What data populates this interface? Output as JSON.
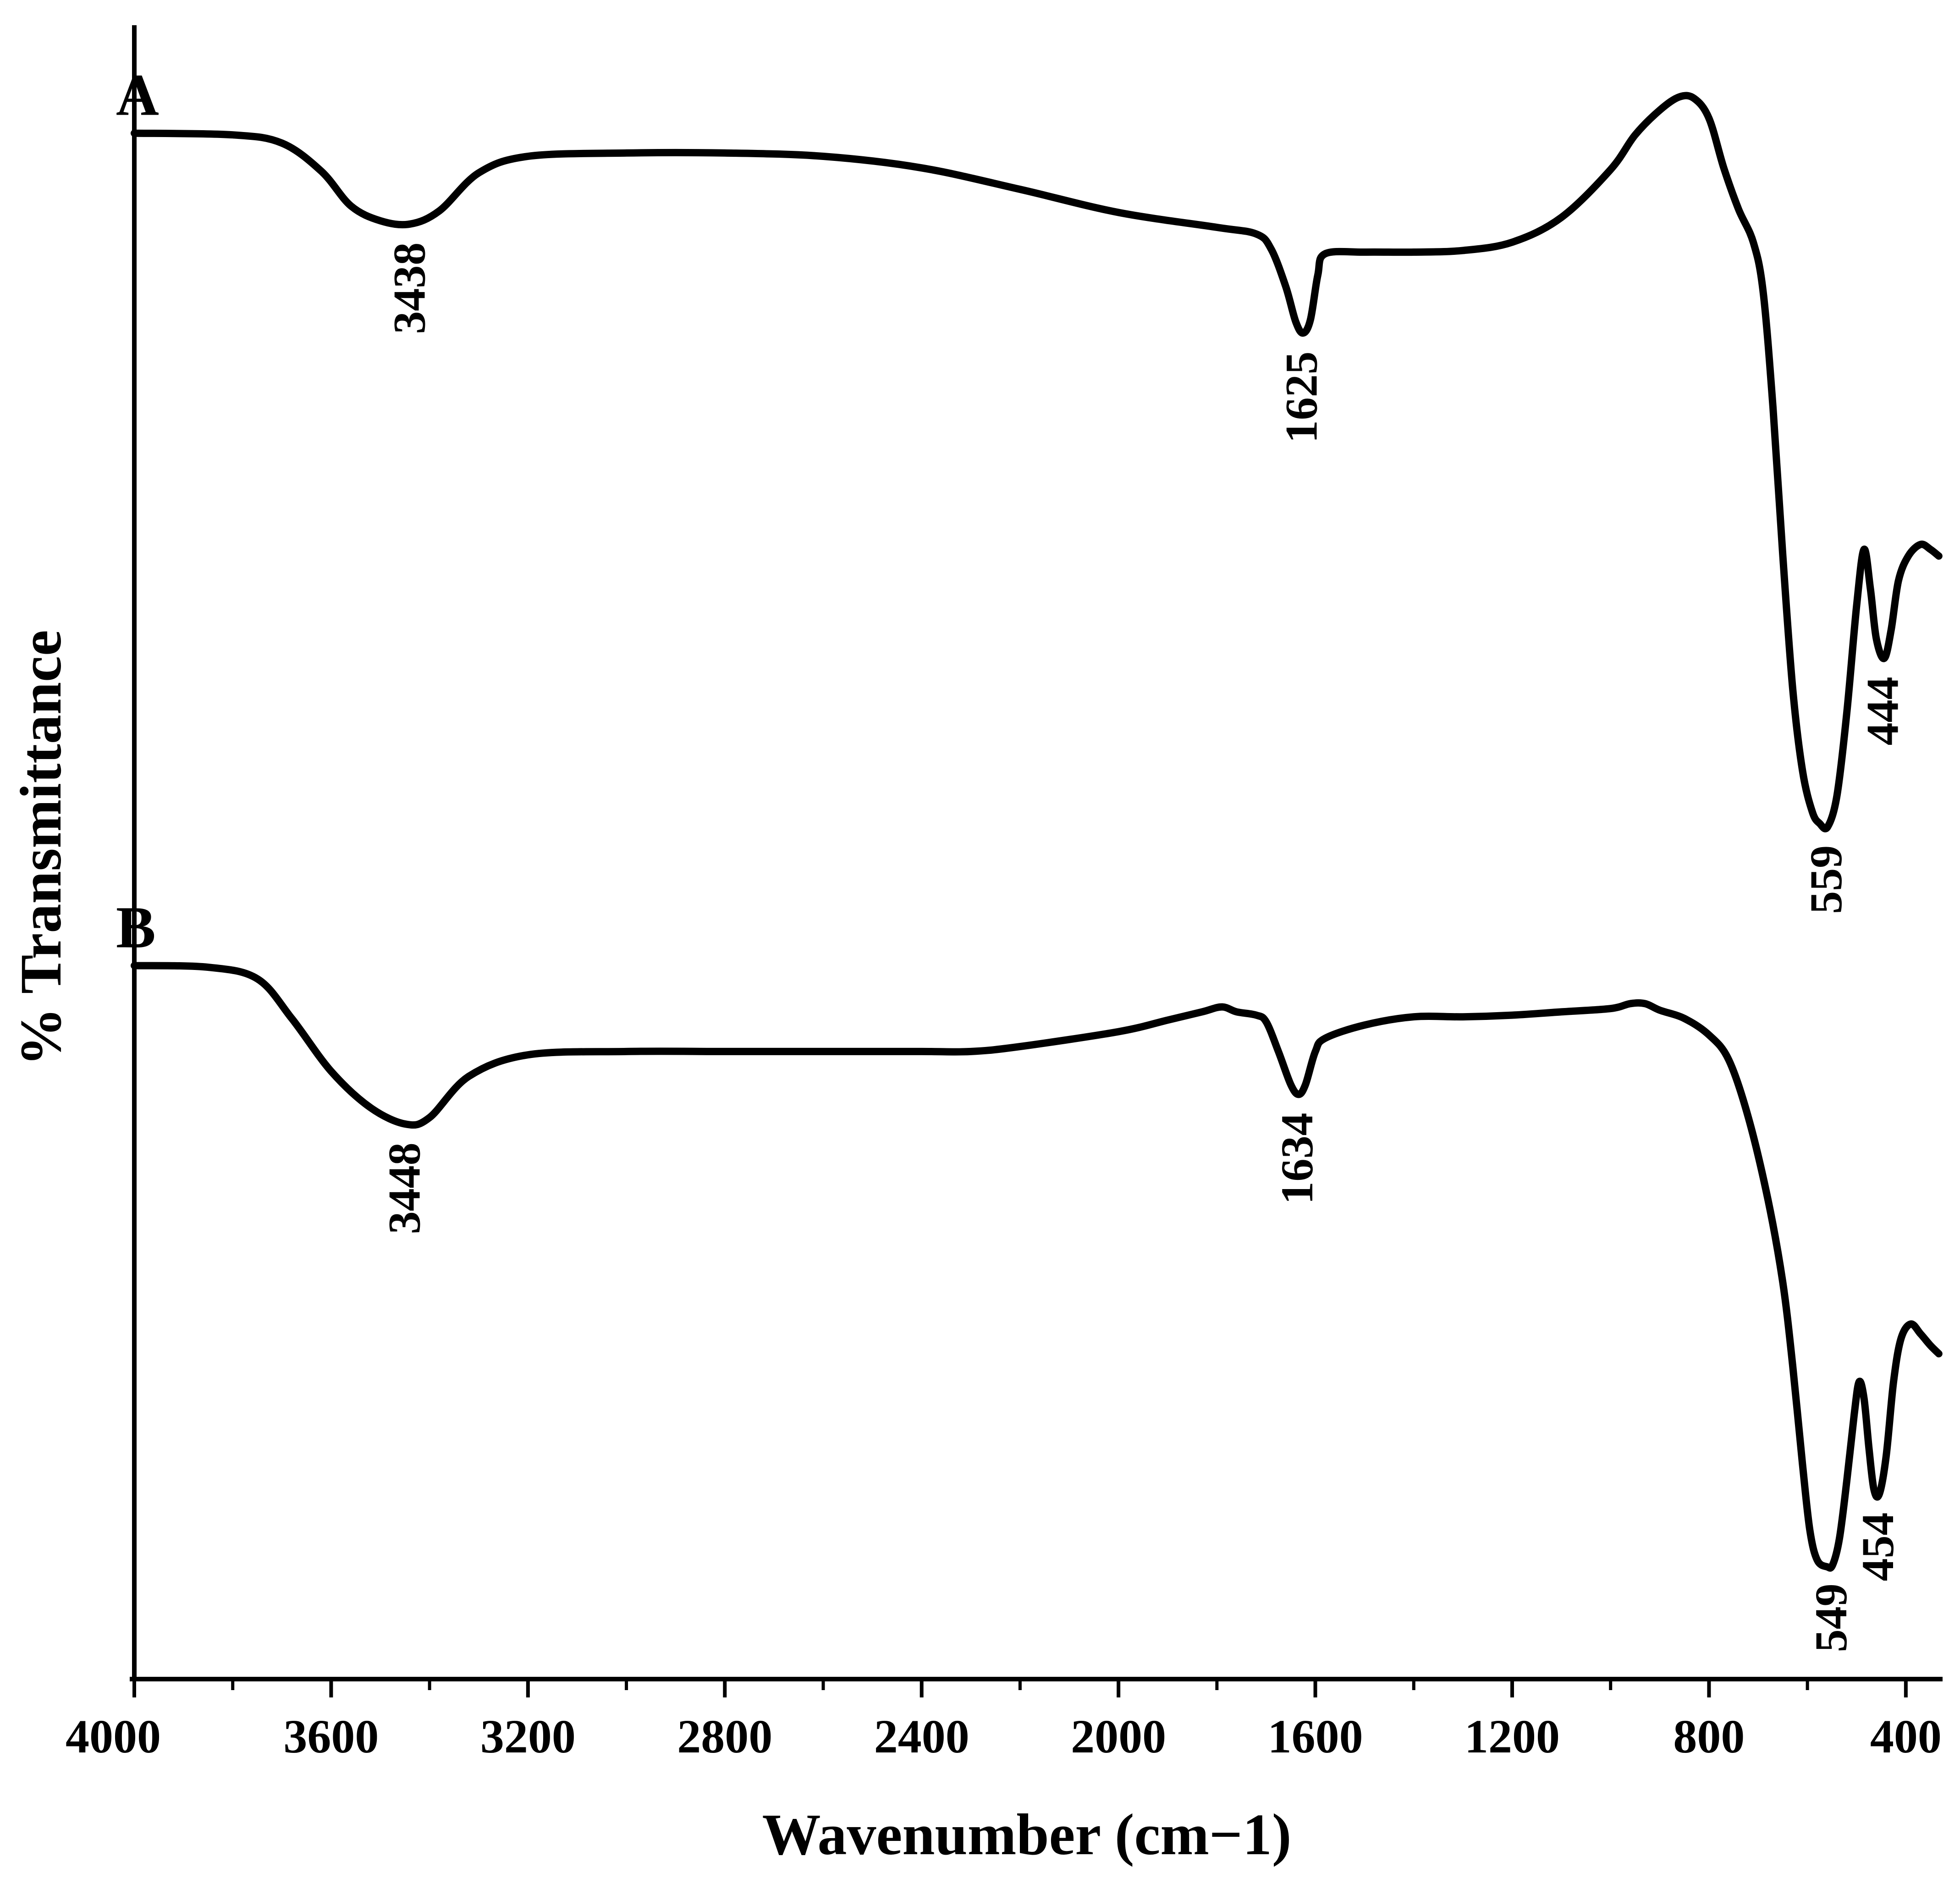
{
  "chart_data": {
    "type": "line",
    "title": "",
    "xlabel": "Wavenumber (cm−1)",
    "ylabel": "% Transmittance",
    "xlim": [
      4000,
      330
    ],
    "x_reversed": true,
    "x_ticks_major": [
      4000,
      3600,
      3200,
      2800,
      2400,
      2000,
      1600,
      1200,
      800,
      400
    ],
    "x_tick_labels": [
      "4000",
      "3600",
      "3200",
      "2800",
      "2400",
      "2000",
      "1600",
      "1200",
      "800",
      "400"
    ],
    "x_ticks_minor": [
      3800,
      3400,
      3000,
      2600,
      2200,
      1800,
      1400,
      1000,
      600
    ],
    "ylim": [
      0,
      100
    ],
    "y_ticks": "none",
    "grid": false,
    "line_color": "#000000",
    "series": [
      {
        "name": "A",
        "points": [
          [
            4000,
            93.6
          ],
          [
            3800,
            93.5
          ],
          [
            3700,
            93.0
          ],
          [
            3620,
            91.3
          ],
          [
            3560,
            89.2
          ],
          [
            3500,
            88.3
          ],
          [
            3440,
            88.1
          ],
          [
            3380,
            88.9
          ],
          [
            3300,
            91.2
          ],
          [
            3200,
            92.2
          ],
          [
            3000,
            92.4
          ],
          [
            2800,
            92.4
          ],
          [
            2600,
            92.2
          ],
          [
            2400,
            91.5
          ],
          [
            2200,
            90.2
          ],
          [
            2000,
            88.8
          ],
          [
            1800,
            87.9
          ],
          [
            1720,
            87.5
          ],
          [
            1690,
            86.6
          ],
          [
            1660,
            84.3
          ],
          [
            1640,
            82.2
          ],
          [
            1625,
            81.5
          ],
          [
            1610,
            82.3
          ],
          [
            1595,
            85.0
          ],
          [
            1580,
            86.3
          ],
          [
            1500,
            86.4
          ],
          [
            1400,
            86.4
          ],
          [
            1300,
            86.5
          ],
          [
            1200,
            87.0
          ],
          [
            1100,
            88.5
          ],
          [
            1000,
            91.4
          ],
          [
            950,
            93.5
          ],
          [
            900,
            95.0
          ],
          [
            860,
            95.8
          ],
          [
            830,
            95.7
          ],
          [
            800,
            94.5
          ],
          [
            770,
            91.5
          ],
          [
            740,
            89.0
          ],
          [
            710,
            87.0
          ],
          [
            690,
            84.0
          ],
          [
            670,
            77.0
          ],
          [
            650,
            68.0
          ],
          [
            630,
            60.0
          ],
          [
            610,
            55.0
          ],
          [
            590,
            52.5
          ],
          [
            575,
            51.8
          ],
          [
            559,
            51.6
          ],
          [
            540,
            53.5
          ],
          [
            520,
            58.5
          ],
          [
            500,
            65.0
          ],
          [
            485,
            68.4
          ],
          [
            472,
            66.0
          ],
          [
            460,
            63.0
          ],
          [
            444,
            61.8
          ],
          [
            430,
            63.5
          ],
          [
            415,
            66.5
          ],
          [
            395,
            68.0
          ],
          [
            370,
            68.7
          ],
          [
            350,
            68.4
          ],
          [
            333,
            68.0
          ]
        ]
      },
      {
        "name": "B",
        "points": [
          [
            4000,
            43.2
          ],
          [
            3850,
            43.1
          ],
          [
            3750,
            42.4
          ],
          [
            3680,
            40.0
          ],
          [
            3600,
            36.8
          ],
          [
            3520,
            34.6
          ],
          [
            3448,
            33.6
          ],
          [
            3400,
            34.0
          ],
          [
            3320,
            36.5
          ],
          [
            3200,
            37.8
          ],
          [
            3000,
            38.0
          ],
          [
            2800,
            38.0
          ],
          [
            2600,
            38.0
          ],
          [
            2400,
            38.0
          ],
          [
            2300,
            38.0
          ],
          [
            2200,
            38.3
          ],
          [
            2000,
            39.2
          ],
          [
            1900,
            39.9
          ],
          [
            1830,
            40.4
          ],
          [
            1790,
            40.7
          ],
          [
            1760,
            40.4
          ],
          [
            1720,
            40.2
          ],
          [
            1700,
            39.8
          ],
          [
            1675,
            38.0
          ],
          [
            1650,
            36.0
          ],
          [
            1634,
            35.4
          ],
          [
            1620,
            36.0
          ],
          [
            1600,
            38.0
          ],
          [
            1580,
            38.8
          ],
          [
            1500,
            39.6
          ],
          [
            1400,
            40.1
          ],
          [
            1300,
            40.1
          ],
          [
            1200,
            40.2
          ],
          [
            1100,
            40.4
          ],
          [
            1000,
            40.6
          ],
          [
            960,
            40.9
          ],
          [
            930,
            40.9
          ],
          [
            900,
            40.5
          ],
          [
            850,
            40.0
          ],
          [
            800,
            39.0
          ],
          [
            760,
            37.5
          ],
          [
            720,
            34.0
          ],
          [
            680,
            29.0
          ],
          [
            650,
            24.0
          ],
          [
            630,
            19.0
          ],
          [
            610,
            13.0
          ],
          [
            595,
            9.0
          ],
          [
            580,
            7.2
          ],
          [
            560,
            6.8
          ],
          [
            549,
            6.9
          ],
          [
            535,
            8.5
          ],
          [
            520,
            12.0
          ],
          [
            505,
            16.0
          ],
          [
            495,
            18.0
          ],
          [
            485,
            17.0
          ],
          [
            475,
            14.0
          ],
          [
            465,
            11.5
          ],
          [
            454,
            11.2
          ],
          [
            440,
            13.5
          ],
          [
            425,
            18.0
          ],
          [
            410,
            20.6
          ],
          [
            390,
            21.5
          ],
          [
            370,
            20.9
          ],
          [
            350,
            20.2
          ],
          [
            333,
            19.7
          ]
        ]
      }
    ],
    "annotations": [
      {
        "series": "A",
        "text": "3438",
        "x": 3438,
        "y": 88.1
      },
      {
        "series": "A",
        "text": "1625",
        "x": 1625,
        "y": 81.5
      },
      {
        "series": "A",
        "text": "559",
        "x": 559,
        "y": 51.6
      },
      {
        "series": "A",
        "text": "444",
        "x": 444,
        "y": 61.8
      },
      {
        "series": "B",
        "text": "3448",
        "x": 3448,
        "y": 33.6
      },
      {
        "series": "B",
        "text": "1634",
        "x": 1634,
        "y": 35.4
      },
      {
        "series": "B",
        "text": "549",
        "x": 549,
        "y": 6.9
      },
      {
        "series": "B",
        "text": "454",
        "x": 454,
        "y": 11.2
      }
    ]
  }
}
